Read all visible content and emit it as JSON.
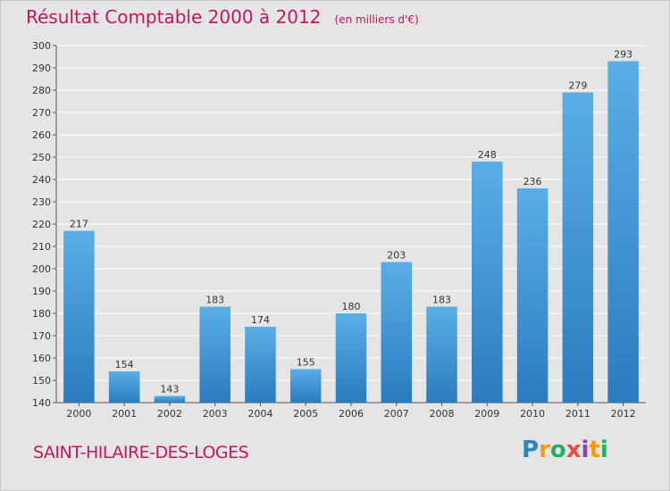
{
  "chart_data": {
    "type": "bar",
    "title": "Résultat Comptable 2000 à 2012",
    "subtitle": "(en milliers d'€)",
    "categories": [
      "2000",
      "2001",
      "2002",
      "2003",
      "2004",
      "2005",
      "2006",
      "2007",
      "2008",
      "2009",
      "2010",
      "2011",
      "2012"
    ],
    "values": [
      217,
      154,
      143,
      183,
      174,
      155,
      180,
      203,
      183,
      248,
      236,
      279,
      293
    ],
    "ylim": [
      140,
      300
    ],
    "yticks": [
      140,
      150,
      160,
      170,
      180,
      190,
      200,
      210,
      220,
      230,
      240,
      250,
      260,
      270,
      280,
      290,
      300
    ],
    "grid": true,
    "bar_color_top": "#5aaee6",
    "bar_color_bottom": "#2a7cbf"
  },
  "footer": {
    "commune": "SAINT-HILAIRE-DES-LOGES",
    "logo_letters": [
      "P",
      "r",
      "o",
      "x",
      "i",
      "t",
      "i"
    ],
    "logo_colors": [
      "#2e86c1",
      "#f39c12",
      "#27ae60",
      "#e74c3c",
      "#8e44ad",
      "#f39c12",
      "#27ae60"
    ]
  },
  "colors": {
    "accent": "#c2185b",
    "background": "#e5e5e5",
    "grid": "#ffffff"
  }
}
